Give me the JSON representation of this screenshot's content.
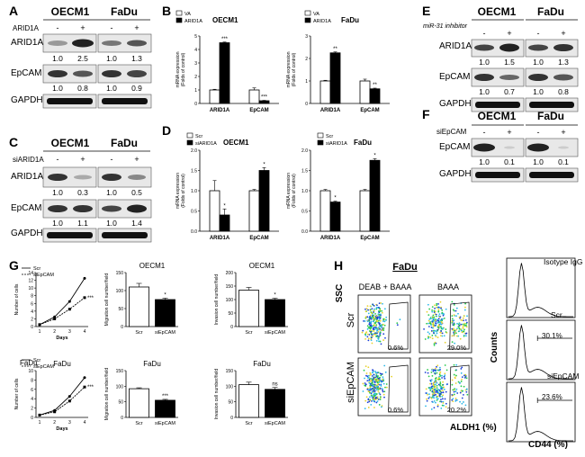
{
  "panel_letters": [
    "A",
    "B",
    "C",
    "D",
    "E",
    "F",
    "G",
    "H"
  ],
  "A": {
    "cols": [
      "OECM1",
      "FaDu"
    ],
    "treat_label": "ARID1A",
    "signs": [
      "-",
      "+",
      "-",
      "+"
    ],
    "rows": [
      "ARID1A",
      "EpCAM",
      "GAPDH"
    ],
    "q_arid": [
      "1.0",
      "2.5",
      "1.0",
      "1.3"
    ],
    "q_epcam": [
      "1.0",
      "0.8",
      "1.0",
      "0.9"
    ]
  },
  "C": {
    "cols": [
      "OECM1",
      "FaDu"
    ],
    "treat_label": "siARID1A",
    "signs": [
      "-",
      "+",
      "-",
      "+"
    ],
    "rows": [
      "ARID1A",
      "EpCAM",
      "GAPDH"
    ],
    "q_arid": [
      "1.0",
      "0.3",
      "1.0",
      "0.5"
    ],
    "q_epcam": [
      "1.0",
      "1.1",
      "1.0",
      "1.4"
    ]
  },
  "E": {
    "cols": [
      "OECM1",
      "FaDu"
    ],
    "treat_label": "miR-31 inhibitor",
    "signs": [
      "-",
      "+",
      "-",
      "+"
    ],
    "rows": [
      "ARID1A",
      "EpCAM",
      "GAPDH"
    ],
    "q_arid": [
      "1.0",
      "1.5",
      "1.0",
      "1.3"
    ],
    "q_epcam": [
      "1.0",
      "0.7",
      "1.0",
      "0.8"
    ]
  },
  "F": {
    "cols": [
      "OECM1",
      "FaDu"
    ],
    "treat_label": "siEpCAM",
    "signs": [
      "-",
      "+",
      "-",
      "+"
    ],
    "rows": [
      "EpCAM",
      "GAPDH"
    ],
    "q_epcam": [
      "1.0",
      "0.1",
      "1.0",
      "0.1"
    ]
  },
  "chart_data": [
    {
      "id": "B1",
      "type": "bar",
      "title": "OECM1",
      "ylabel": "mRNA expression\n(Folds of control)",
      "categories": [
        "ARID1A",
        "EpCAM"
      ],
      "series": [
        {
          "name": "VA",
          "values": [
            1.0,
            1.0
          ]
        },
        {
          "name": "ARID1A",
          "values": [
            4.5,
            0.2
          ]
        }
      ],
      "errors": [
        [
          0.05,
          0.05
        ],
        [
          0.15,
          0.03
        ]
      ],
      "sig": [
        "***",
        "***"
      ],
      "ylim": [
        0,
        5
      ],
      "yticks": [
        0,
        1,
        2,
        3,
        4,
        5
      ]
    },
    {
      "id": "B2",
      "type": "bar",
      "title": "FaDu",
      "ylabel": "mRNA expression\n(Folds of control)",
      "categories": [
        "ARID1A",
        "EpCAM"
      ],
      "series": [
        {
          "name": "VA",
          "values": [
            1.0,
            1.0
          ]
        },
        {
          "name": "ARID1A",
          "values": [
            2.25,
            0.65
          ]
        }
      ],
      "errors": [
        [
          0.03,
          0.04
        ],
        [
          0.08,
          0.03
        ]
      ],
      "sig": [
        "**",
        "**"
      ],
      "ylim": [
        0,
        3
      ],
      "yticks": [
        0,
        1,
        2,
        3
      ]
    },
    {
      "id": "D1",
      "type": "bar",
      "title": "OECM1",
      "ylabel": "mRNA expression\n(Folds of control)",
      "categories": [
        "ARID1A",
        "EpCAM"
      ],
      "series": [
        {
          "name": "Scr",
          "values": [
            1.0,
            1.0
          ]
        },
        {
          "name": "siARID1A",
          "values": [
            0.4,
            1.5
          ]
        }
      ],
      "errors": [
        [
          0.25,
          0.15
        ],
        [
          0.03,
          0.07
        ]
      ],
      "sig": [
        "*",
        "*"
      ],
      "ylim": [
        0,
        2
      ],
      "yticks": [
        0.0,
        0.5,
        1.0,
        1.5,
        2.0
      ]
    },
    {
      "id": "D2",
      "type": "bar",
      "title": "FaDu",
      "ylabel": "mRNA expression\n(Folds of control)",
      "categories": [
        "ARID1A",
        "EpCAM"
      ],
      "series": [
        {
          "name": "Scr",
          "values": [
            1.0,
            1.0
          ]
        },
        {
          "name": "siARID1A",
          "values": [
            0.72,
            1.75
          ]
        }
      ],
      "errors": [
        [
          0.03,
          0.02
        ],
        [
          0.03,
          0.04
        ]
      ],
      "sig": [
        "*",
        "*"
      ],
      "ylim": [
        0,
        2
      ],
      "yticks": [
        0.0,
        0.5,
        1.0,
        1.5,
        2.0
      ]
    },
    {
      "id": "G1",
      "type": "line",
      "title": "",
      "xlabel": "Days",
      "ylabel": "Number of cells",
      "x": [
        1,
        2,
        3,
        4
      ],
      "series": [
        {
          "name": "Scr",
          "values": [
            0.5,
            2.5,
            6.5,
            12.5
          ]
        },
        {
          "name": "siEpCAM",
          "values": [
            0.5,
            2.0,
            4.5,
            7.5
          ]
        }
      ],
      "sig": "***",
      "ylim": [
        0,
        14
      ],
      "yticks": [
        0,
        2,
        4,
        6,
        8,
        10,
        12,
        14
      ],
      "legend": "top-left"
    },
    {
      "id": "G2",
      "type": "bar",
      "title": "OECM1",
      "ylabel": "Migration cell number/field",
      "categories": [
        "Scr",
        "siEpCAM"
      ],
      "values": [
        110,
        75
      ],
      "errors": [
        10,
        4
      ],
      "sig": [
        "",
        "*"
      ],
      "ylim": [
        0,
        150
      ],
      "yticks": [
        0,
        50,
        100,
        150
      ]
    },
    {
      "id": "G3",
      "type": "bar",
      "title": "OECM1",
      "ylabel": "Invasion cell number/field",
      "categories": [
        "Scr",
        "siEpCAM"
      ],
      "values": [
        135,
        100
      ],
      "errors": [
        10,
        5
      ],
      "sig": [
        "",
        "*"
      ],
      "ylim": [
        0,
        200
      ],
      "yticks": [
        0,
        50,
        100,
        150,
        200
      ]
    },
    {
      "id": "G4",
      "type": "line",
      "title": "FaDu",
      "xlabel": "Days",
      "ylabel": "Number of cells",
      "x": [
        1,
        2,
        3,
        4
      ],
      "series": [
        {
          "name": "Scr",
          "values": [
            0.5,
            1.5,
            4.5,
            8.5
          ]
        },
        {
          "name": "siEpCAM",
          "values": [
            0.5,
            1.2,
            3.5,
            6.5
          ]
        }
      ],
      "sig": "***",
      "ylim": [
        0,
        10
      ],
      "yticks": [
        0,
        2,
        4,
        6,
        8,
        10
      ],
      "legend": "top-left"
    },
    {
      "id": "G5",
      "type": "bar",
      "title": "FaDu",
      "ylabel": "Migration cell number/field",
      "categories": [
        "Scr",
        "siEpCAM"
      ],
      "values": [
        92,
        55
      ],
      "errors": [
        3,
        3
      ],
      "sig": [
        "",
        "***"
      ],
      "ylim": [
        0,
        150
      ],
      "yticks": [
        0,
        50,
        100,
        150
      ]
    },
    {
      "id": "G6",
      "type": "bar",
      "title": "FaDu",
      "ylabel": "Invasion cell number/field",
      "categories": [
        "Scr",
        "siEpCAM"
      ],
      "values": [
        105,
        90
      ],
      "errors": [
        8,
        6
      ],
      "sig": [
        "",
        "ns"
      ],
      "ylim": [
        0,
        150
      ],
      "yticks": [
        0,
        50,
        100,
        150
      ]
    }
  ],
  "H": {
    "title": "FaDu",
    "col_labels": [
      "DEAB + BAAA",
      "BAAA"
    ],
    "row_labels": [
      "Scr",
      "siEpCAM"
    ],
    "yaxis": "SSC",
    "xaxis": "ALDH1 (%)",
    "gates": [
      "0.6%",
      "29.0%",
      "0.6%",
      "20.2%"
    ],
    "hist_labels": [
      "Isotype IgG",
      "Scr",
      "siEpCAM"
    ],
    "hist_pcts": [
      "",
      "30.1%",
      "23.6%"
    ],
    "hist_yaxis": "Counts",
    "hist_xaxis": "CD44 (%)"
  }
}
